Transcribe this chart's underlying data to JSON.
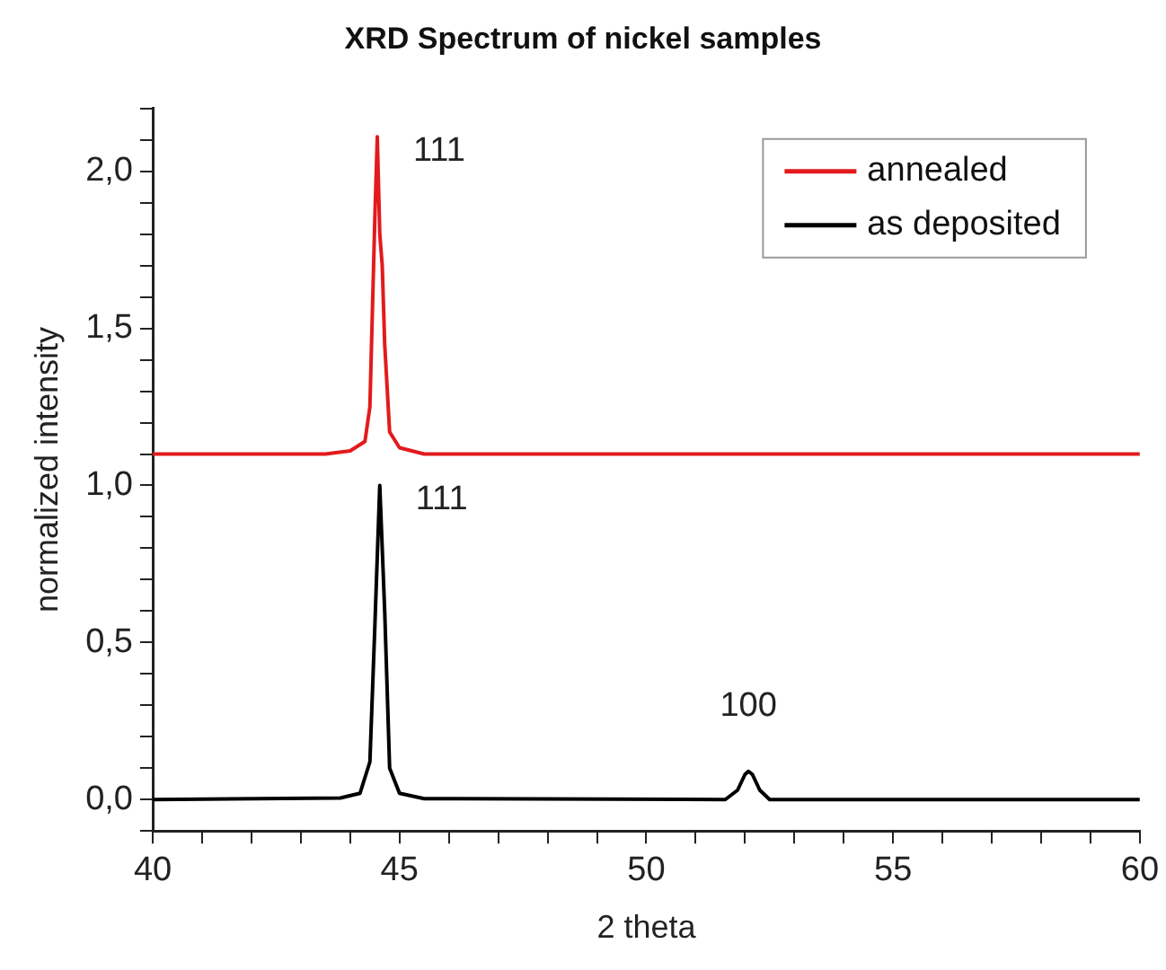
{
  "chart_data": {
    "type": "line",
    "title": "XRD Spectrum of nickel samples",
    "xlabel": "2 theta",
    "ylabel": "normalized intensity",
    "xlim": [
      40,
      60
    ],
    "xticks": [
      40,
      {
        "value": 41,
        "label": null
      },
      {
        "value": 42,
        "label": null
      },
      {
        "value": 43,
        "label": null
      },
      {
        "value": 44,
        "label": null
      },
      45,
      {
        "value": 46,
        "label": null
      },
      {
        "value": 47,
        "label": null
      },
      {
        "value": 48,
        "label": null
      },
      {
        "value": 49,
        "label": null
      },
      50,
      {
        "value": 51,
        "label": null
      },
      {
        "value": 52,
        "label": null
      },
      {
        "value": 53,
        "label": null
      },
      {
        "value": 54,
        "label": null
      },
      55,
      {
        "value": 56,
        "label": null
      },
      {
        "value": 57,
        "label": null
      },
      {
        "value": 58,
        "label": null
      },
      {
        "value": 59,
        "label": null
      },
      60
    ],
    "ylim": [
      -0.1,
      2.2
    ],
    "yticks": [
      {
        "value": -0.1,
        "label": null
      },
      {
        "value": 0,
        "label": "0,0"
      },
      {
        "value": 0.1,
        "label": null
      },
      {
        "value": 0.2,
        "label": null
      },
      {
        "value": 0.3,
        "label": null
      },
      {
        "value": 0.4,
        "label": null
      },
      {
        "value": 0.5,
        "label": "0,5"
      },
      {
        "value": 0.6,
        "label": null
      },
      {
        "value": 0.7,
        "label": null
      },
      {
        "value": 0.8,
        "label": null
      },
      {
        "value": 0.9,
        "label": null
      },
      {
        "value": 1,
        "label": "1,0"
      },
      {
        "value": 1.1,
        "label": null
      },
      {
        "value": 1.2,
        "label": null
      },
      {
        "value": 1.3,
        "label": null
      },
      {
        "value": 1.4,
        "label": null
      },
      {
        "value": 1.5,
        "label": "1,5"
      },
      {
        "value": 1.6,
        "label": null
      },
      {
        "value": 1.7,
        "label": null
      },
      {
        "value": 1.8,
        "label": null
      },
      {
        "value": 1.9,
        "label": null
      },
      {
        "value": 2,
        "label": "2,0"
      },
      {
        "value": 2.1,
        "label": null
      },
      {
        "value": 2.2,
        "label": null
      }
    ],
    "grid": false,
    "legend": "top right",
    "marker": "none",
    "line_style": "solid",
    "series": [
      {
        "name": "annealed",
        "color": "#e31a1c",
        "x": [
          40,
          43.5,
          44.0,
          44.3,
          44.4,
          44.5,
          44.55,
          44.6,
          44.65,
          44.7,
          44.8,
          45.0,
          45.5,
          60
        ],
        "values": [
          1.1,
          1.1,
          1.11,
          1.14,
          1.25,
          1.85,
          2.11,
          1.8,
          1.7,
          1.45,
          1.17,
          1.12,
          1.1,
          1.1
        ]
      },
      {
        "name": "as deposited",
        "color": "#000000",
        "x": [
          40,
          43.8,
          44.2,
          44.4,
          44.5,
          44.6,
          44.7,
          44.8,
          45.0,
          45.5,
          51.6,
          51.85,
          52.0,
          52.07,
          52.15,
          52.3,
          52.5,
          60
        ],
        "values": [
          0,
          0.005,
          0.02,
          0.12,
          0.55,
          1.0,
          0.6,
          0.1,
          0.02,
          0.003,
          0,
          0.03,
          0.08,
          0.09,
          0.08,
          0.03,
          0,
          0
        ]
      }
    ],
    "annotations": [
      {
        "text": "111",
        "x": 44.55,
        "y": 2.11
      },
      {
        "text": "111",
        "x": 44.6,
        "y": 1.0
      },
      {
        "text": "100",
        "x": 52.07,
        "y": 0.09
      }
    ]
  }
}
